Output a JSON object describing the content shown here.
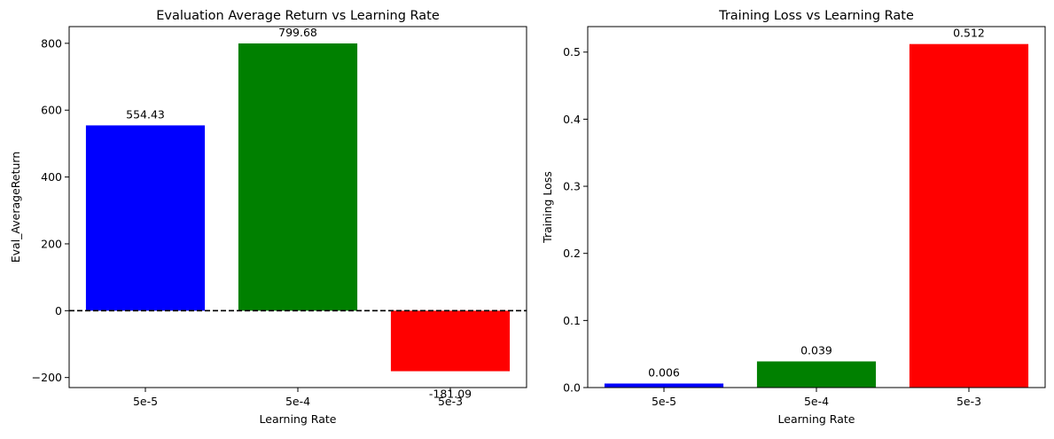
{
  "chart_data": [
    {
      "type": "bar",
      "title": "Evaluation Average Return vs Learning Rate",
      "xlabel": "Learning Rate",
      "ylabel": "Eval_AverageReturn",
      "categories": [
        "5e-5",
        "5e-4",
        "5e-3"
      ],
      "values": [
        554.43,
        799.68,
        -181.09
      ],
      "value_labels": [
        "554.43",
        "799.68",
        "-181.09"
      ],
      "colors": [
        "#0000ff",
        "#008000",
        "#ff0000"
      ],
      "ylim": [
        -230,
        850
      ],
      "yticks": [
        -200,
        0,
        200,
        400,
        600,
        800
      ],
      "ytick_labels": [
        "−200",
        "0",
        "200",
        "400",
        "600",
        "800"
      ],
      "reference_line": {
        "y": 0,
        "style": "dashed",
        "color": "#000000"
      },
      "grid": false
    },
    {
      "type": "bar",
      "title": "Training Loss vs Learning Rate",
      "xlabel": "Learning Rate",
      "ylabel": "Training Loss",
      "categories": [
        "5e-5",
        "5e-4",
        "5e-3"
      ],
      "values": [
        0.006,
        0.039,
        0.512
      ],
      "value_labels": [
        "0.006",
        "0.039",
        "0.512"
      ],
      "colors": [
        "#0000ff",
        "#008000",
        "#ff0000"
      ],
      "ylim": [
        0,
        0.538
      ],
      "yticks": [
        0,
        0.1,
        0.2,
        0.3,
        0.4,
        0.5
      ],
      "ytick_labels": [
        "0.0",
        "0.1",
        "0.2",
        "0.3",
        "0.4",
        "0.5"
      ],
      "grid": false
    }
  ]
}
